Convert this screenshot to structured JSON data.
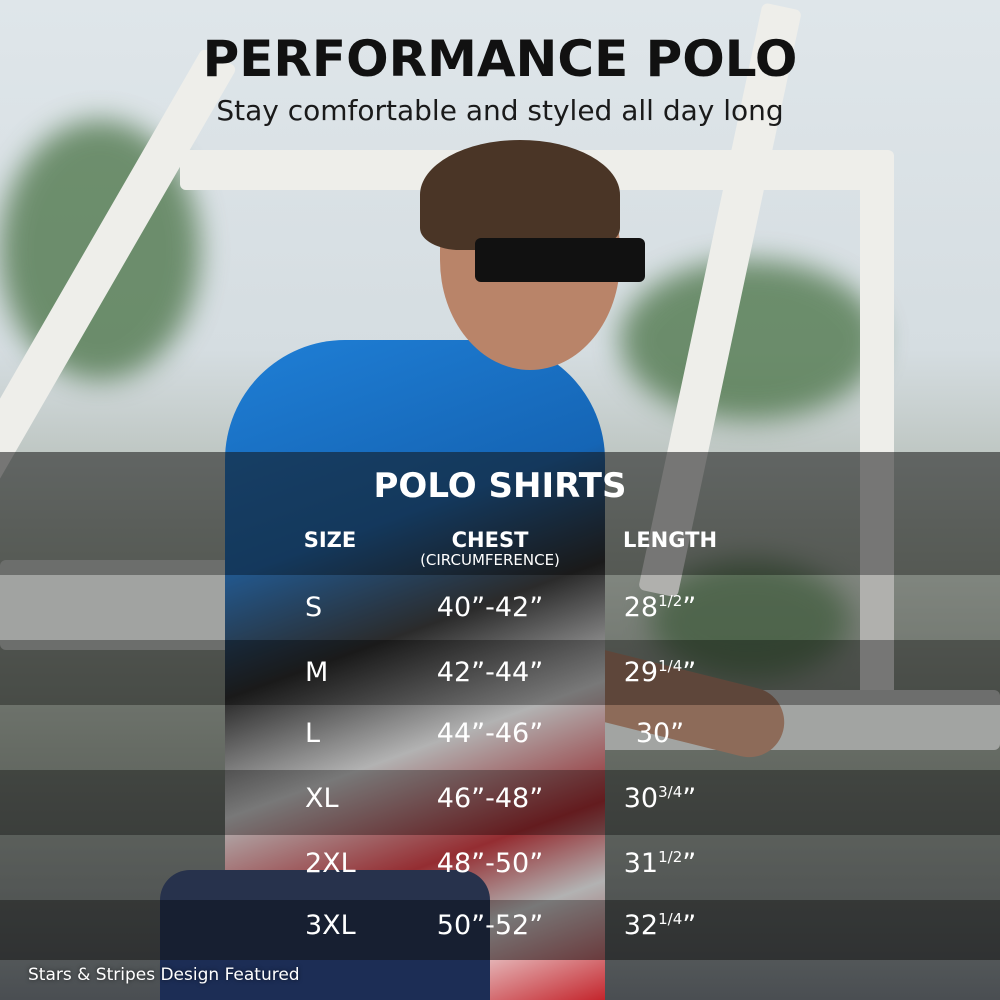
{
  "header": {
    "title": "PERFORMANCE POLO",
    "subtitle": "Stay comfortable and styled all day long"
  },
  "size_chart": {
    "title": "POLO SHIRTS",
    "columns": {
      "size": "SIZE",
      "chest": "CHEST",
      "chest_note": "(CIRCUMFERENCE)",
      "length": "LENGTH"
    },
    "rows": [
      {
        "size": "S",
        "chest": "40”-42”",
        "length": "28",
        "length_frac": "1/2",
        "unit": "”"
      },
      {
        "size": "M",
        "chest": "42”-44”",
        "length": "29",
        "length_frac": "1/4",
        "unit": "”"
      },
      {
        "size": "L",
        "chest": "44”-46”",
        "length": "30",
        "length_frac": "",
        "unit": "”"
      },
      {
        "size": "XL",
        "chest": "46”-48”",
        "length": "30",
        "length_frac": "3/4",
        "unit": "”"
      },
      {
        "size": "2XL",
        "chest": "48”-50”",
        "length": "31",
        "length_frac": "1/2",
        "unit": "”"
      },
      {
        "size": "3XL",
        "chest": "50”-52”",
        "length": "32",
        "length_frac": "1/4",
        "unit": "”"
      }
    ]
  },
  "footer": {
    "caption": "Stars & Stripes Design Featured"
  }
}
